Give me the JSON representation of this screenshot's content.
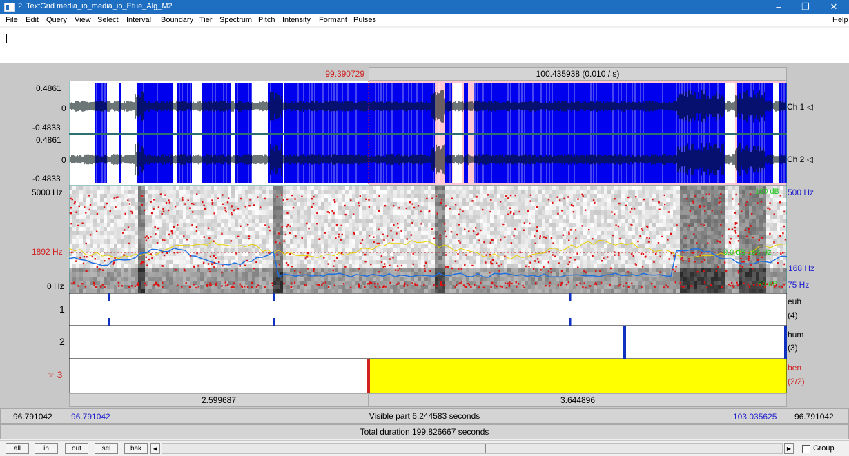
{
  "window": {
    "title": "2. TextGrid media_io_media_io_Etue_Alg_M2",
    "controls": {
      "minimize": "–",
      "maximize": "❐",
      "close": "✕"
    }
  },
  "menu": {
    "items": [
      "File",
      "Edit",
      "Query",
      "View",
      "Select",
      "Interval",
      "Boundary",
      "Tier",
      "Spectrum",
      "Pitch",
      "Intensity",
      "Formant",
      "Pulses"
    ],
    "help": "Help"
  },
  "selection": {
    "start_time": "99.390729",
    "duration_label": "100.435938 (0.010 / s)"
  },
  "sound": {
    "ch1": {
      "top": "0.4861",
      "zero": "0",
      "bottom": "-0.4833",
      "label": "Ch 1"
    },
    "ch2": {
      "top": "0.4861",
      "zero": "0",
      "bottom": "-0.4833",
      "label": "Ch 2"
    }
  },
  "spectrogram": {
    "top_label": "5000 Hz",
    "cursor_label": "1892 Hz",
    "bottom_label": "0 Hz",
    "right_top_db": "100 dB",
    "right_top_hz": "500 Hz",
    "right_mid_db": "0.0 dB  168 Hz",
    "right_mid_hz": "168 Hz",
    "right_bottom_db": "50 dB",
    "right_bottom_hz": "75 Hz"
  },
  "tiers": [
    {
      "number": "1",
      "name": "euh",
      "count": "(4)"
    },
    {
      "number": "2",
      "name": "hum",
      "count": "(3)"
    },
    {
      "number": "3",
      "name": "ben",
      "count": "(2/2)",
      "pointer": "☞"
    }
  ],
  "intervals": {
    "left": "2.599687",
    "right": "3.644896"
  },
  "visible_bar": {
    "window_start": "96.791042",
    "visible_start": "96.791042",
    "label": "Visible part 6.244583 seconds",
    "visible_end": "103.035625",
    "window_end": "96.791042"
  },
  "total_bar": {
    "label": "Total duration 199.826667 seconds"
  },
  "buttons": {
    "all": "all",
    "in": "in",
    "out": "out",
    "sel": "sel",
    "bak": "bak",
    "group": "Group"
  },
  "colors": {
    "selection": "#0000ff",
    "cursor": "#ff0000",
    "interval_fill": "#ffff00",
    "formant": "#ff0000",
    "pitch": "#1e90ff",
    "intensity": "#ffd700"
  }
}
